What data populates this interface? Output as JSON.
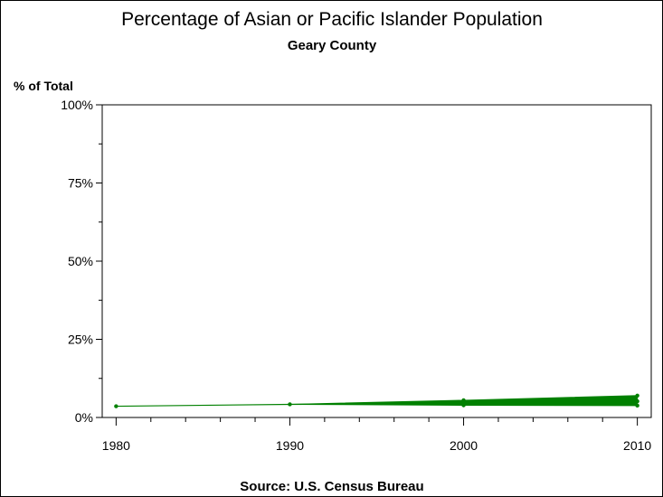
{
  "chart_data": {
    "type": "line",
    "title": "Percentage of Asian or Pacific Islander Population",
    "subtitle": "Geary County",
    "ylabel": "% of Total",
    "footnote": "Source: U.S. Census Bureau",
    "x_ticks": [
      "1980",
      "1990",
      "2000",
      "2010"
    ],
    "x_tick_values": [
      1980,
      1990,
      2000,
      2010
    ],
    "y_ticks": [
      "0%",
      "25%",
      "50%",
      "75%",
      "100%"
    ],
    "y_tick_values": [
      0,
      25,
      50,
      75,
      100
    ],
    "xlim": [
      1979.2,
      2010.8
    ],
    "ylim": [
      0,
      100
    ],
    "grid": false,
    "series_color": "#008000",
    "series": [
      {
        "label": "",
        "x": [
          1980,
          1990,
          2000,
          2010
        ],
        "y": [
          3.6,
          4.2,
          4.6,
          5.2
        ],
        "band": [
          {
            "x": 2000,
            "lower": 3.9,
            "upper": 5.5
          },
          {
            "x": 2010,
            "lower": 3.8,
            "upper": 7.0
          }
        ]
      }
    ]
  }
}
